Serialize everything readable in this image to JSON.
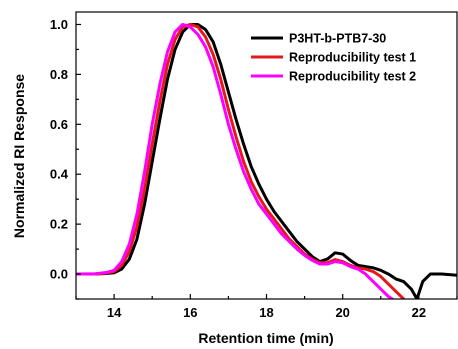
{
  "chart_data": {
    "type": "line",
    "xlabel": "Retention time (min)",
    "ylabel": "Normalized RI Response",
    "xlim": [
      13,
      23
    ],
    "ylim": [
      -0.1,
      1.05
    ],
    "xticks": [
      14,
      16,
      18,
      20,
      22
    ],
    "yticks": [
      0.0,
      0.2,
      0.4,
      0.6,
      0.8,
      1.0
    ],
    "xtick_labels": [
      "14",
      "16",
      "18",
      "20",
      "22"
    ],
    "ytick_labels": [
      "0.0",
      "0.2",
      "0.4",
      "0.6",
      "0.8",
      "1.0"
    ],
    "grid": false,
    "legend_position": "top-right",
    "series": [
      {
        "name": "P3HT-b-PTB7-30",
        "color": "#000000",
        "x": [
          13,
          13.5,
          13.8,
          14.0,
          14.2,
          14.4,
          14.6,
          14.8,
          15.0,
          15.2,
          15.4,
          15.6,
          15.8,
          16.0,
          16.2,
          16.4,
          16.6,
          16.8,
          17.0,
          17.2,
          17.4,
          17.6,
          17.8,
          18.0,
          18.2,
          18.4,
          18.6,
          18.8,
          19.0,
          19.2,
          19.4,
          19.6,
          19.8,
          20.0,
          20.2,
          20.4,
          20.6,
          20.8,
          21.0,
          21.2,
          21.4,
          21.6,
          21.8,
          21.95,
          22.1,
          22.3,
          22.6,
          23.0
        ],
        "y": [
          0.0,
          0.0,
          0.002,
          0.005,
          0.02,
          0.06,
          0.14,
          0.28,
          0.45,
          0.62,
          0.78,
          0.9,
          0.97,
          1.0,
          1.0,
          0.98,
          0.93,
          0.84,
          0.73,
          0.62,
          0.52,
          0.43,
          0.36,
          0.3,
          0.25,
          0.21,
          0.17,
          0.13,
          0.1,
          0.07,
          0.05,
          0.06,
          0.085,
          0.08,
          0.055,
          0.035,
          0.03,
          0.025,
          0.015,
          0.0,
          -0.02,
          -0.03,
          -0.06,
          -0.1,
          -0.03,
          0.0,
          0.0,
          -0.005
        ]
      },
      {
        "name": "Reproducibility test 1",
        "color": "#e31a1c",
        "x": [
          13,
          13.5,
          13.8,
          14.0,
          14.2,
          14.4,
          14.6,
          14.8,
          15.0,
          15.2,
          15.4,
          15.6,
          15.8,
          16.0,
          16.2,
          16.4,
          16.6,
          16.8,
          17.0,
          17.2,
          17.4,
          17.6,
          17.8,
          18.0,
          18.2,
          18.4,
          18.6,
          18.8,
          19.0,
          19.2,
          19.4,
          19.6,
          19.8,
          20.0,
          20.2,
          20.4,
          20.6,
          20.8,
          21.0,
          21.2,
          21.4,
          21.6,
          21.7
        ],
        "y": [
          0.0,
          0.0,
          0.004,
          0.01,
          0.035,
          0.09,
          0.19,
          0.34,
          0.52,
          0.69,
          0.84,
          0.94,
          0.99,
          1.0,
          0.99,
          0.95,
          0.88,
          0.78,
          0.66,
          0.55,
          0.45,
          0.37,
          0.31,
          0.26,
          0.22,
          0.18,
          0.14,
          0.11,
          0.08,
          0.06,
          0.045,
          0.045,
          0.058,
          0.05,
          0.035,
          0.025,
          0.02,
          0.01,
          -0.01,
          -0.04,
          -0.07,
          -0.1,
          -0.12
        ]
      },
      {
        "name": "Reproducibility test 2",
        "color": "#ff00ff",
        "x": [
          13,
          13.5,
          13.8,
          14.0,
          14.2,
          14.4,
          14.6,
          14.8,
          15.0,
          15.2,
          15.4,
          15.6,
          15.8,
          16.0,
          16.2,
          16.4,
          16.6,
          16.8,
          17.0,
          17.2,
          17.4,
          17.6,
          17.8,
          18.0,
          18.2,
          18.4,
          18.6,
          18.8,
          19.0,
          19.2,
          19.4,
          19.6,
          19.8,
          20.0,
          20.2,
          20.4,
          20.6,
          20.8,
          21.0,
          21.2,
          21.4,
          21.5
        ],
        "y": [
          0.0,
          0.001,
          0.006,
          0.015,
          0.05,
          0.12,
          0.24,
          0.41,
          0.6,
          0.76,
          0.89,
          0.97,
          1.0,
          0.99,
          0.96,
          0.91,
          0.83,
          0.72,
          0.6,
          0.5,
          0.41,
          0.34,
          0.28,
          0.24,
          0.2,
          0.16,
          0.13,
          0.1,
          0.075,
          0.055,
          0.04,
          0.04,
          0.05,
          0.045,
          0.03,
          0.02,
          0.0,
          -0.03,
          -0.06,
          -0.09,
          -0.11,
          -0.12
        ]
      }
    ]
  }
}
